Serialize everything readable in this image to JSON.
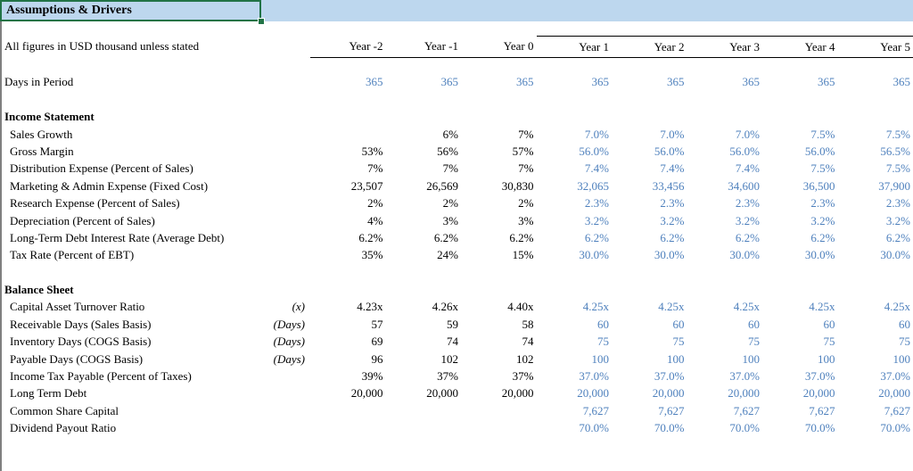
{
  "app": {
    "title": "Assumptions & Drivers",
    "subtitle": "All figures in USD thousand unless stated"
  },
  "colors": {
    "header_fill": "#BDD7EE",
    "selection_border": "#217346",
    "forecast_text": "#4F81BD",
    "historical_text": "#000000"
  },
  "table": {
    "columns": [
      "Year -2",
      "Year -1",
      "Year 0",
      "Year 1",
      "Year 2",
      "Year 3",
      "Year 4",
      "Year 5"
    ],
    "forecast_start_col": 3,
    "rows": [
      {
        "type": "spacer"
      },
      {
        "type": "data",
        "label": "Days in Period",
        "unit": "",
        "indent": false,
        "blue_from": 0,
        "values": [
          "365",
          "365",
          "365",
          "365",
          "365",
          "365",
          "365",
          "365"
        ]
      },
      {
        "type": "spacer"
      },
      {
        "type": "section",
        "label": "Income Statement"
      },
      {
        "type": "data",
        "label": "Sales Growth",
        "unit": "",
        "indent": true,
        "blue_from": 3,
        "values": [
          "",
          "6%",
          "7%",
          "7.0%",
          "7.0%",
          "7.0%",
          "7.5%",
          "7.5%"
        ]
      },
      {
        "type": "data",
        "label": "Gross Margin",
        "unit": "",
        "indent": true,
        "blue_from": 3,
        "values": [
          "53%",
          "56%",
          "57%",
          "56.0%",
          "56.0%",
          "56.0%",
          "56.0%",
          "56.5%"
        ]
      },
      {
        "type": "data",
        "label": "Distribution Expense (Percent of Sales)",
        "unit": "",
        "indent": true,
        "blue_from": 3,
        "values": [
          "7%",
          "7%",
          "7%",
          "7.4%",
          "7.4%",
          "7.4%",
          "7.5%",
          "7.5%"
        ]
      },
      {
        "type": "data",
        "label": "Marketing & Admin Expense (Fixed Cost)",
        "unit": "",
        "indent": true,
        "blue_from": 3,
        "values": [
          "23,507",
          "26,569",
          "30,830",
          "32,065",
          "33,456",
          "34,600",
          "36,500",
          "37,900"
        ]
      },
      {
        "type": "data",
        "label": "Research Expense (Percent of Sales)",
        "unit": "",
        "indent": true,
        "blue_from": 3,
        "values": [
          "2%",
          "2%",
          "2%",
          "2.3%",
          "2.3%",
          "2.3%",
          "2.3%",
          "2.3%"
        ]
      },
      {
        "type": "data",
        "label": "Depreciation (Percent of Sales)",
        "unit": "",
        "indent": true,
        "blue_from": 3,
        "values": [
          "4%",
          "3%",
          "3%",
          "3.2%",
          "3.2%",
          "3.2%",
          "3.2%",
          "3.2%"
        ]
      },
      {
        "type": "data",
        "label": "Long-Term Debt Interest Rate (Average Debt)",
        "unit": "",
        "indent": true,
        "blue_from": 3,
        "values": [
          "6.2%",
          "6.2%",
          "6.2%",
          "6.2%",
          "6.2%",
          "6.2%",
          "6.2%",
          "6.2%"
        ]
      },
      {
        "type": "data",
        "label": "Tax Rate (Percent of EBT)",
        "unit": "",
        "indent": true,
        "blue_from": 3,
        "values": [
          "35%",
          "24%",
          "15%",
          "30.0%",
          "30.0%",
          "30.0%",
          "30.0%",
          "30.0%"
        ]
      },
      {
        "type": "spacer"
      },
      {
        "type": "section",
        "label": "Balance Sheet"
      },
      {
        "type": "data",
        "label": "Capital Asset Turnover Ratio",
        "unit": "(x)",
        "indent": true,
        "blue_from": 3,
        "values": [
          "4.23x",
          "4.26x",
          "4.40x",
          "4.25x",
          "4.25x",
          "4.25x",
          "4.25x",
          "4.25x"
        ]
      },
      {
        "type": "data",
        "label": "Receivable Days (Sales Basis)",
        "unit": "(Days)",
        "indent": true,
        "blue_from": 3,
        "values": [
          "57",
          "59",
          "58",
          "60",
          "60",
          "60",
          "60",
          "60"
        ]
      },
      {
        "type": "data",
        "label": "Inventory Days (COGS Basis)",
        "unit": "(Days)",
        "indent": true,
        "blue_from": 3,
        "values": [
          "69",
          "74",
          "74",
          "75",
          "75",
          "75",
          "75",
          "75"
        ]
      },
      {
        "type": "data",
        "label": "Payable Days (COGS Basis)",
        "unit": "(Days)",
        "indent": true,
        "blue_from": 3,
        "values": [
          "96",
          "102",
          "102",
          "100",
          "100",
          "100",
          "100",
          "100"
        ]
      },
      {
        "type": "data",
        "label": "Income Tax Payable (Percent of Taxes)",
        "unit": "",
        "indent": true,
        "blue_from": 3,
        "values": [
          "39%",
          "37%",
          "37%",
          "37.0%",
          "37.0%",
          "37.0%",
          "37.0%",
          "37.0%"
        ]
      },
      {
        "type": "data",
        "label": "Long Term Debt",
        "unit": "",
        "indent": true,
        "blue_from": 3,
        "values": [
          "20,000",
          "20,000",
          "20,000",
          "20,000",
          "20,000",
          "20,000",
          "20,000",
          "20,000"
        ]
      },
      {
        "type": "data",
        "label": "Common Share Capital",
        "unit": "",
        "indent": true,
        "blue_from": 3,
        "values": [
          "",
          "",
          "",
          "7,627",
          "7,627",
          "7,627",
          "7,627",
          "7,627"
        ]
      },
      {
        "type": "data",
        "label": "Dividend Payout Ratio",
        "unit": "",
        "indent": true,
        "blue_from": 3,
        "values": [
          "",
          "",
          "",
          "70.0%",
          "70.0%",
          "70.0%",
          "70.0%",
          "70.0%"
        ]
      }
    ]
  }
}
